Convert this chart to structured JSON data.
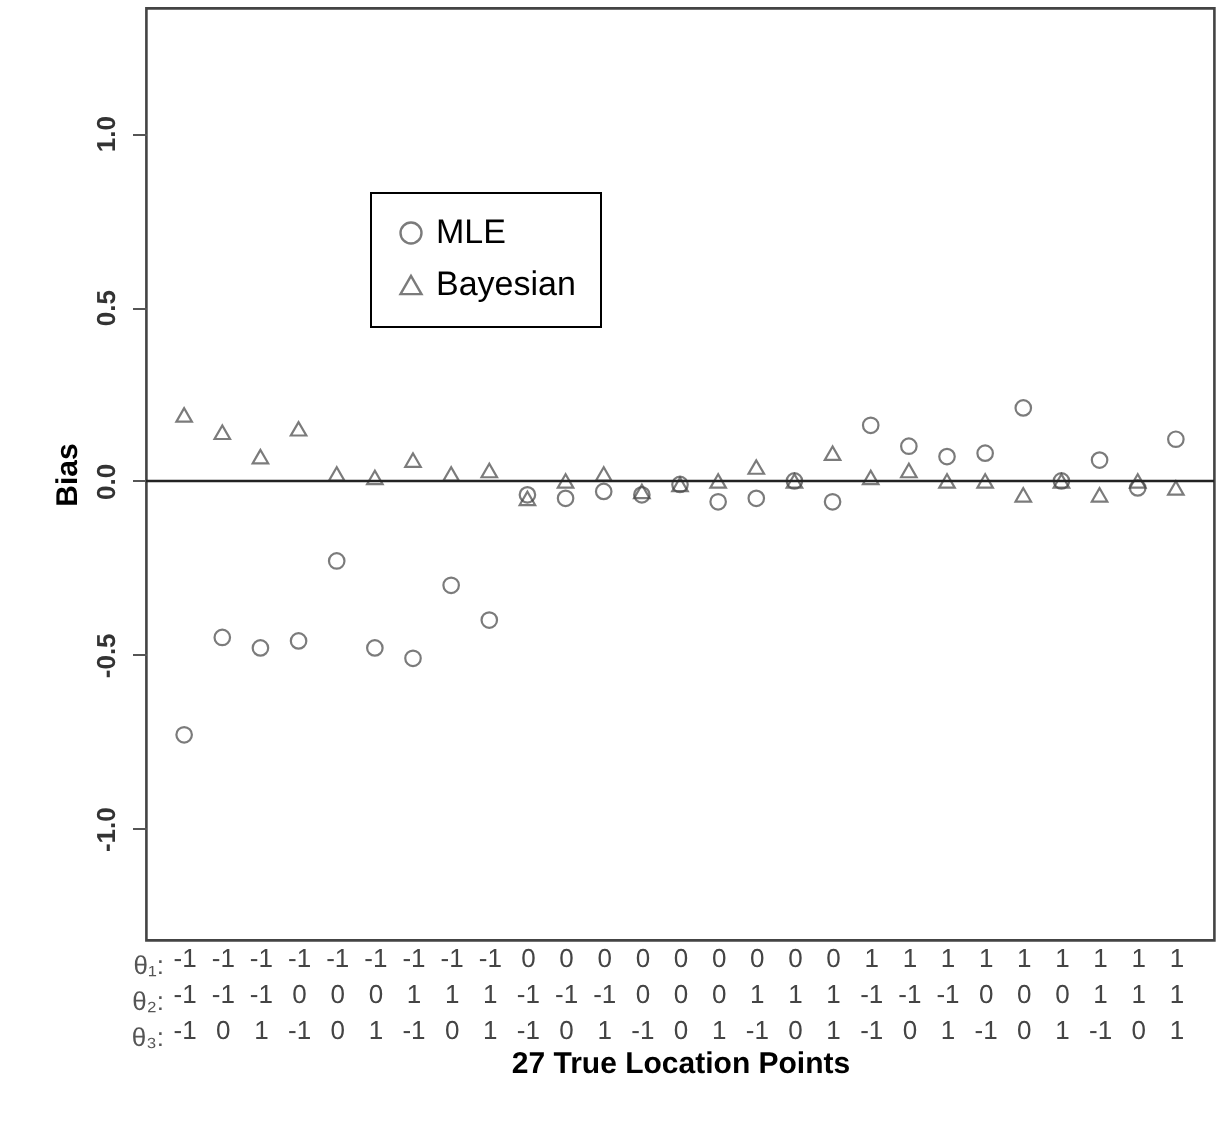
{
  "chart_data": {
    "type": "scatter",
    "xlabel": "27 True Location Points",
    "ylabel": "Bias",
    "categories": [
      "-1\n-1\n-1",
      "-1\n-1\n0",
      "-1\n-1\n1",
      "-1\n0\n-1",
      "-1\n0\n0",
      "-1\n0\n1",
      "-1\n1\n-1",
      "-1\n1\n0",
      "-1\n1\n1",
      "0\n-1\n-1",
      "0\n-1\n0",
      "0\n-1\n1",
      "0\n0\n-1",
      "0\n0\n0",
      "0\n0\n1",
      "0\n1\n-1",
      "0\n1\n0",
      "0\n1\n1",
      "1\n-1\n-1",
      "1\n-1\n0",
      "1\n-1\n1",
      "1\n0\n-1",
      "1\n0\n0",
      "1\n0\n1",
      "1\n1\n-1",
      "1\n1\n0",
      "1\n1\n1"
    ],
    "series": [
      {
        "name": "MLE",
        "color": "#444444",
        "marker": "circle",
        "values": [
          -0.73,
          -0.45,
          -0.48,
          -0.46,
          -0.23,
          -0.48,
          -0.51,
          -0.3,
          -0.4,
          -0.04,
          -0.05,
          -0.03,
          -0.04,
          -0.01,
          -0.06,
          -0.05,
          0.0,
          -0.06,
          0.16,
          0.1,
          0.07,
          0.08,
          0.21,
          0.0,
          0.06,
          -0.02,
          0.12
        ]
      },
      {
        "name": "Bayesian",
        "color": "#444444",
        "marker": "triangle",
        "values": [
          0.19,
          0.14,
          0.07,
          0.15,
          0.02,
          0.01,
          0.06,
          0.02,
          0.03,
          -0.05,
          0.0,
          0.02,
          -0.03,
          -0.01,
          0.0,
          0.04,
          0.0,
          0.08,
          0.01,
          0.03,
          0.0,
          0.0,
          -0.04,
          0.0,
          -0.04,
          0.0,
          -0.02
        ]
      }
    ],
    "ylim": [
      -1.32,
      1.36
    ],
    "yticks": [
      {
        "value": -1,
        "label": "-1.0"
      },
      {
        "value": -0.5,
        "label": "-0.5"
      },
      {
        "value": 0,
        "label": "0.0"
      },
      {
        "value": 0.5,
        "label": "0.5"
      },
      {
        "value": 1,
        "label": "1.0"
      }
    ],
    "ref_lines": [
      {
        "axis": "y",
        "value": 0,
        "color": "#222222"
      }
    ],
    "annotations": [
      "θ₁:",
      "θ₂:",
      "θ₃:"
    ],
    "legend": "top left",
    "grid": false
  }
}
